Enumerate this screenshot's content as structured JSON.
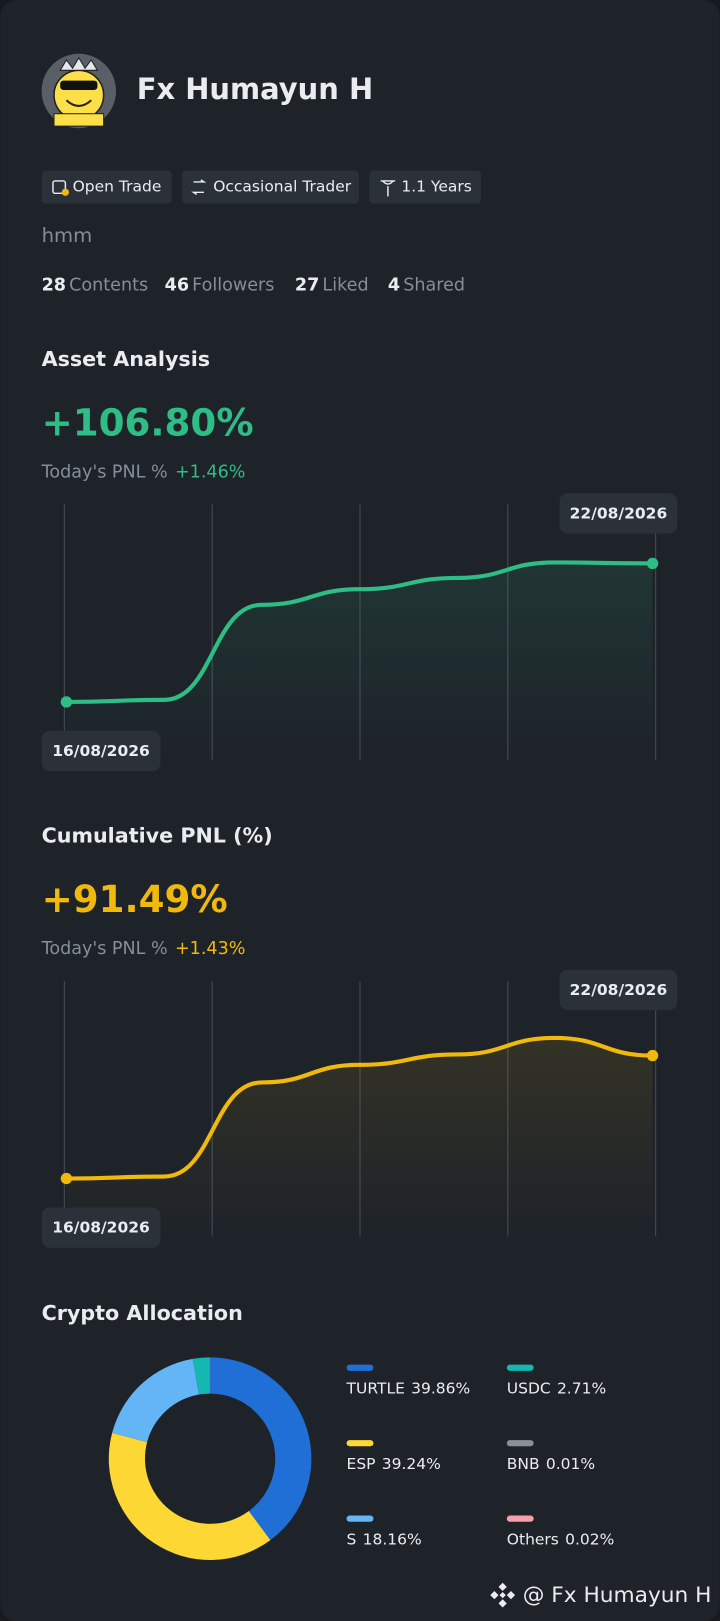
{
  "profile": {
    "name": "Fx Humayun H",
    "tags": [
      "Open Trade",
      "Occasional Trader",
      "1.1 Years"
    ],
    "bio": "hmm",
    "stats": [
      {
        "value": 28,
        "label": "Contents"
      },
      {
        "value": 46,
        "label": "Followers"
      },
      {
        "value": 27,
        "label": "Liked"
      },
      {
        "value": 4,
        "label": "Shared"
      }
    ]
  },
  "chart_data": [
    {
      "type": "line",
      "title": "Asset Analysis",
      "headline": "+106.80%",
      "today_label": "Today's PNL %",
      "today_value": "+1.46%",
      "categories": [
        "16/08/2026",
        null,
        null,
        null,
        null,
        null,
        "22/08/2026"
      ],
      "series": [
        {
          "color": "#2ebd85",
          "values": [
            0,
            1.6,
            74.9,
            86.9,
            95.6,
            107.6,
            106.8
          ]
        }
      ]
    },
    {
      "type": "line",
      "title": "Cumulative PNL (%)",
      "headline": "+91.49%",
      "today_label": "Today's PNL %",
      "today_value": "+1.43%",
      "categories": [
        "16/08/2026",
        null,
        null,
        null,
        null,
        null,
        "22/08/2026"
      ],
      "series": [
        {
          "color": "#f0b90b",
          "values": [
            0,
            1.5,
            71.5,
            84.6,
            92.3,
            104.6,
            91.49
          ]
        }
      ]
    },
    {
      "type": "pie",
      "title": "Crypto Allocation",
      "categories": [
        "TURTLE",
        "ESP",
        "S",
        "USDC",
        "BNB",
        "Others"
      ],
      "values": [
        39.86,
        39.24,
        18.16,
        2.71,
        0.01,
        0.02
      ],
      "value_labels": [
        "39.86%",
        "39.24%",
        "18.16%",
        "2.71%",
        "0.01%",
        "0.02%"
      ],
      "colors": [
        "#1f6fd6",
        "#fdd835",
        "#64b5f6",
        "#14b8b0",
        "#8a8f98",
        "#f4a0a8"
      ]
    }
  ],
  "watermark": "@ Fx Humayun H"
}
